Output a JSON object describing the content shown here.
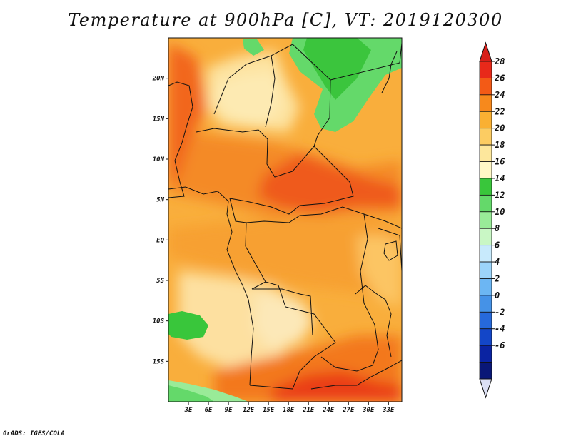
{
  "title": "Temperature at 900hPa [C], VT: 2019120300",
  "footer": "GrADS: IGES/COLA",
  "map": {
    "lat_ticks": [
      "20N",
      "15N",
      "10N",
      "5N",
      "EQ",
      "5S",
      "10S",
      "15S"
    ],
    "lon_ticks": [
      "3E",
      "6E",
      "9E",
      "12E",
      "15E",
      "18E",
      "21E",
      "24E",
      "27E",
      "30E",
      "33E"
    ],
    "lat_values": [
      20,
      15,
      10,
      5,
      0,
      -5,
      -10,
      -15
    ],
    "lon_values": [
      3,
      6,
      9,
      12,
      15,
      18,
      21,
      24,
      27,
      30,
      33
    ],
    "lon_range": [
      0,
      35
    ],
    "lat_range": [
      -20,
      25
    ]
  },
  "colorbar": {
    "labels": [
      "28",
      "26",
      "24",
      "22",
      "20",
      "18",
      "16",
      "14",
      "12",
      "10",
      "8",
      "6",
      "4",
      "2",
      "0",
      "-2",
      "-4",
      "-6"
    ],
    "colors": [
      "#e8291a",
      "#f35a16",
      "#f7891c",
      "#fab032",
      "#fccc62",
      "#fde79c",
      "#fff7c6",
      "#39c63b",
      "#64d96a",
      "#99eb98",
      "#c9f7c5",
      "#c8eafc",
      "#9cd4fa",
      "#6cb6f3",
      "#4592e7",
      "#2669db",
      "#1346c8",
      "#0a23a2",
      "#091777"
    ],
    "top_color": "#d8201a",
    "bottom_color": "#dce0f5"
  }
}
